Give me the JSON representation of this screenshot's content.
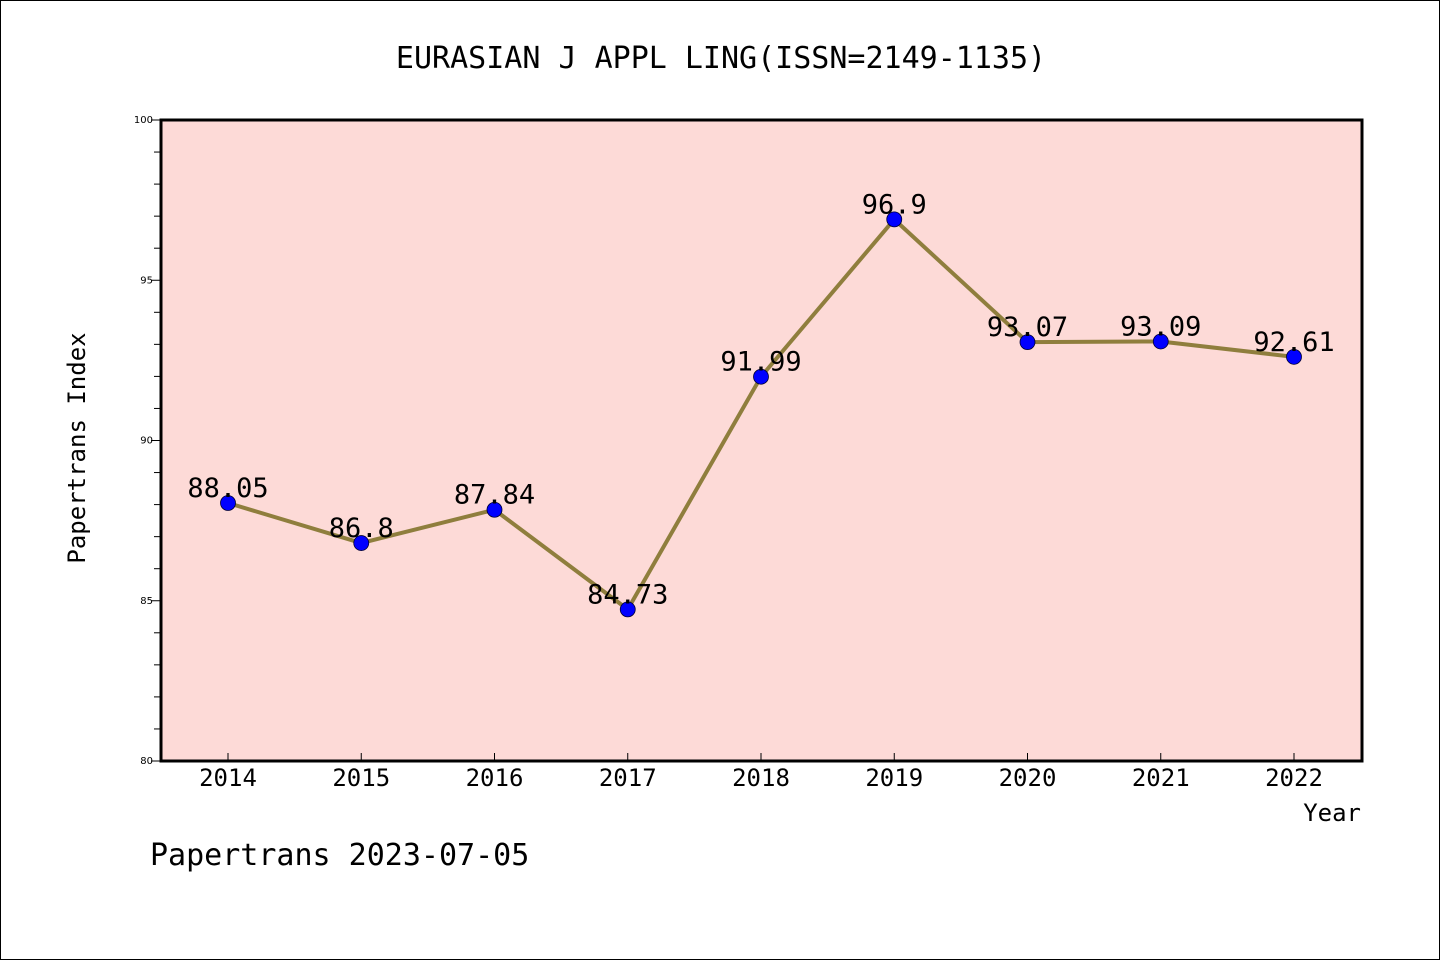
{
  "chart_data": {
    "type": "line",
    "title": "EURASIAN J APPL LING(ISSN=2149-1135)",
    "xlabel": "Year",
    "ylabel": "Papertrans Index",
    "categories": [
      "2014",
      "2015",
      "2016",
      "2017",
      "2018",
      "2019",
      "2020",
      "2021",
      "2022"
    ],
    "values": [
      88.05,
      86.8,
      87.84,
      84.73,
      91.99,
      96.9,
      93.07,
      93.09,
      92.61
    ],
    "data_labels": [
      "88.05",
      "86.8",
      "87.84",
      "84.73",
      "91.99",
      "96.9",
      "93.07",
      "93.09",
      "92.61"
    ],
    "ylim": [
      80,
      100
    ],
    "yticks": [
      80,
      85,
      90,
      95,
      100
    ],
    "ytick_labels": [
      "80",
      "85",
      "90",
      "95",
      "100"
    ],
    "grid": false,
    "colors": {
      "plot_background": "#fddad7",
      "line": "#8f7e3d",
      "marker": "#0000ff"
    }
  },
  "footer": "Papertrans 2023-07-05"
}
